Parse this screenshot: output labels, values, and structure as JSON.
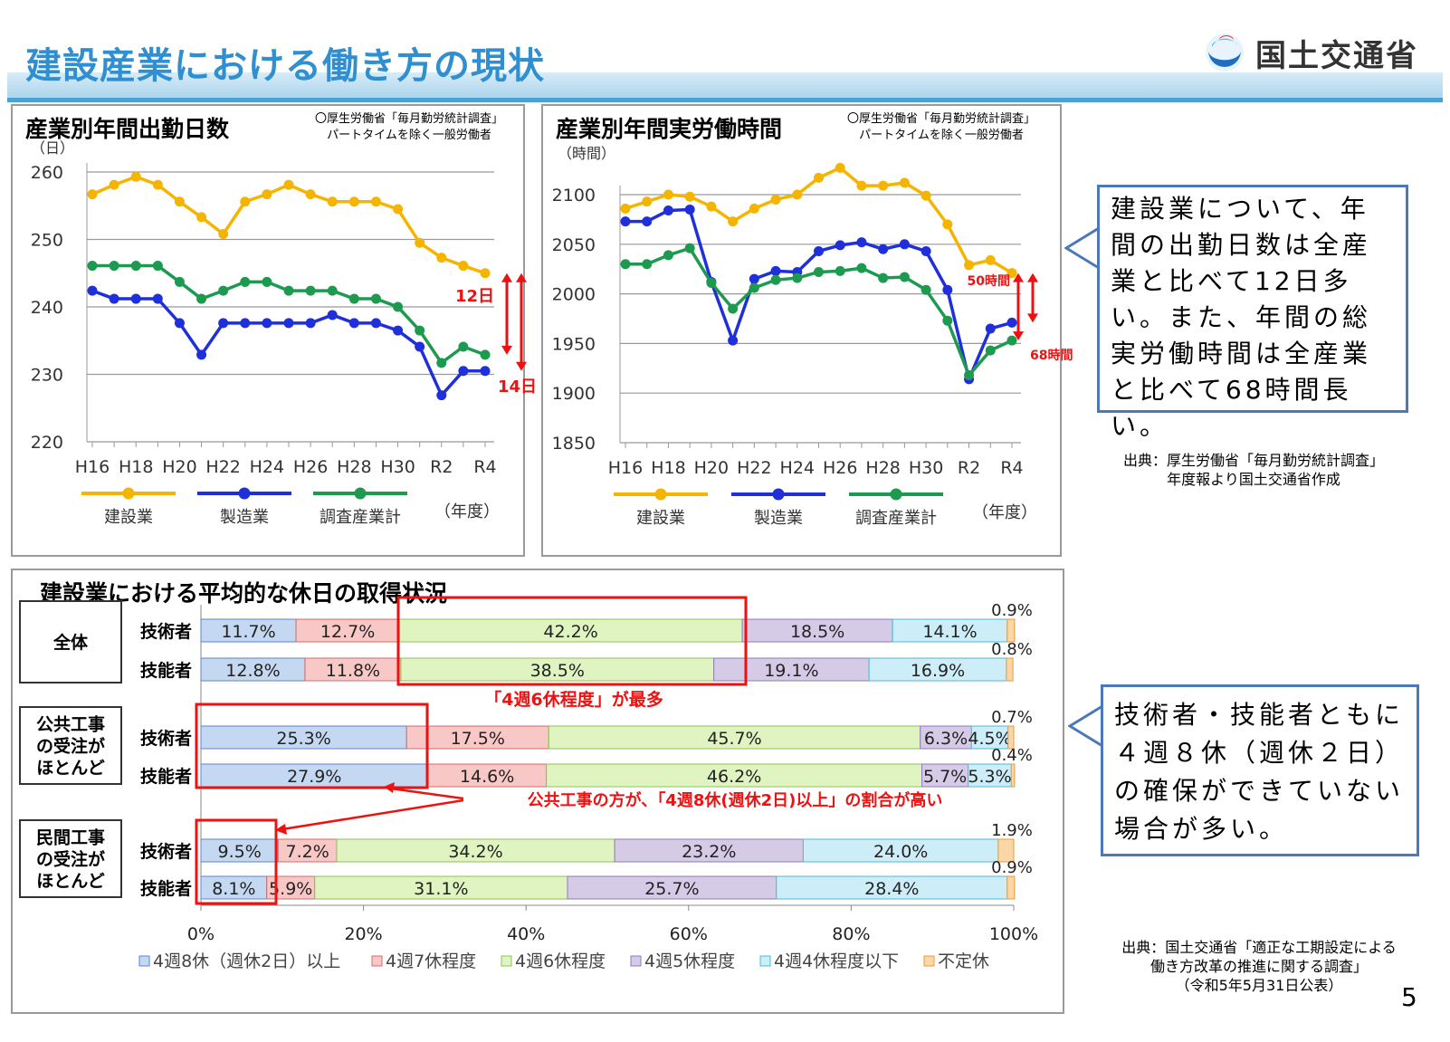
{
  "header": {
    "title": "建設産業における働き方の現状",
    "ministry": "国土交通省"
  },
  "colors": {
    "construction": "#f5b400",
    "manufacturing": "#1f2fd9",
    "all_industry": "#1e9a50",
    "accent_red": "#ee1111",
    "title_blue": "#2f8fd0",
    "bar_8": "#c5d8f1",
    "bar_7": "#f8c8c6",
    "bar_6": "#dff4c0",
    "bar_5": "#d6cbe7",
    "bar_4": "#cdeef8",
    "bar_irregular": "#fbd7a8"
  },
  "days_panel": {
    "note_line1": "〇厚生労働省「毎月勤労統計調査」",
    "note_line2": "パートタイムを除く一般労働者",
    "diff_upper": "12日",
    "diff_lower": "14日"
  },
  "hours_panel": {
    "note_line1": "〇厚生労働省「毎月勤労統計調査」",
    "note_line2": "パートタイムを除く一般労働者",
    "diff_upper": "50時間",
    "diff_lower": "68時間"
  },
  "legend": {
    "construction": "建設業",
    "manufacturing": "製造業",
    "all": "調査産業計",
    "year": "（年度）"
  },
  "callout_top": "建設業について、年間の出勤日数は全産業と比べて12日多い。また、年間の総実労働時間は全産業と比べて68時間長い。",
  "source_top": {
    "line1": "出典：厚生労働省「毎月勤労統計調査」",
    "line2": "年度報より国土交通省作成"
  },
  "holiday_panel": {
    "group_all": "全体",
    "group_public": "公共工事の受注がほとんど",
    "group_private": "民間工事の受注がほとんど",
    "note_6": "「4週6休程度」が最多",
    "note_8": "公共工事の方が、「4週8休(週休2日)以上」の割合が高い"
  },
  "callout_bottom": "技術者・技能者ともに４週８休（週休２日）の確保ができていない場合が多い。",
  "source_bottom": {
    "line1": "出典：国土交通省「適正な工期設定による",
    "line2": "働き方改革の推進に関する調査」",
    "line3": "（令和5年5月31日公表）"
  },
  "page_number": "5",
  "chart_data": [
    {
      "type": "line",
      "title": "産業別年間出勤日数",
      "ylabel": "（日）",
      "ylim": [
        220,
        260
      ],
      "yticks": [
        220,
        230,
        240,
        250,
        260
      ],
      "x": [
        "H16",
        "H17",
        "H18",
        "H19",
        "H20",
        "H21",
        "H22",
        "H23",
        "H24",
        "H25",
        "H26",
        "H27",
        "H28",
        "H29",
        "H30",
        "R1",
        "R2",
        "R3",
        "R4"
      ],
      "xtick_labels": [
        "H16",
        "H18",
        "H20",
        "H22",
        "H24",
        "H26",
        "H28",
        "H30",
        "R2",
        "R4"
      ],
      "series": [
        {
          "name": "建設業",
          "values": [
            256.7,
            258.1,
            259.3,
            258.1,
            255.6,
            253.3,
            250.8,
            255.6,
            256.7,
            258.1,
            256.7,
            255.6,
            255.6,
            255.6,
            254.5,
            249.5,
            247.3,
            246.1,
            245.0
          ]
        },
        {
          "name": "製造業",
          "values": [
            242.4,
            241.2,
            241.2,
            241.2,
            237.6,
            232.9,
            237.6,
            237.6,
            237.6,
            237.6,
            237.6,
            238.8,
            237.6,
            237.6,
            236.5,
            234.1,
            226.9,
            230.5,
            230.5
          ]
        },
        {
          "name": "調査産業計",
          "values": [
            246.1,
            246.1,
            246.1,
            246.1,
            243.7,
            241.2,
            242.4,
            243.7,
            243.7,
            242.4,
            242.4,
            242.4,
            241.2,
            241.2,
            240.0,
            236.5,
            231.7,
            234.1,
            232.9
          ]
        }
      ]
    },
    {
      "type": "line",
      "title": "産業別年間実労働時間",
      "ylabel": "（時間）",
      "ylim": [
        1850,
        2100
      ],
      "yticks": [
        1850,
        1900,
        1950,
        2000,
        2050,
        2100
      ],
      "x": [
        "H16",
        "H17",
        "H18",
        "H19",
        "H20",
        "H21",
        "H22",
        "H23",
        "H24",
        "H25",
        "H26",
        "H27",
        "H28",
        "H29",
        "H30",
        "R1",
        "R2",
        "R3",
        "R4"
      ],
      "xtick_labels": [
        "H16",
        "H18",
        "H20",
        "H22",
        "H24",
        "H26",
        "H28",
        "H30",
        "R2",
        "R4"
      ],
      "series": [
        {
          "name": "建設業",
          "values": [
            2086,
            2093,
            2100,
            2098,
            2088,
            2073,
            2086,
            2095,
            2100,
            2117,
            2127,
            2109,
            2109,
            2112,
            2099,
            2070,
            2029,
            2034,
            2021
          ]
        },
        {
          "name": "製造業",
          "values": [
            2073,
            2073,
            2084,
            2085,
            2012,
            1953,
            2015,
            2023,
            2022,
            2043,
            2049,
            2052,
            2045,
            2050,
            2043,
            2004,
            1914,
            1965,
            1971
          ]
        },
        {
          "name": "調査産業計",
          "values": [
            2030,
            2030,
            2039,
            2046,
            2011,
            1985,
            2006,
            2014,
            2016,
            2022,
            2023,
            2026,
            2016,
            2017,
            2004,
            1973,
            1918,
            1943,
            1953
          ]
        }
      ]
    },
    {
      "type": "bar",
      "title": "建設業における平均的な休日の取得状況",
      "orientation": "horizontal-stacked",
      "xlim": [
        0,
        100
      ],
      "xticks": [
        "0%",
        "20%",
        "40%",
        "60%",
        "80%",
        "100%"
      ],
      "categories": [
        "4週8休（週休2日）以上",
        "4週7休程度",
        "4週6休程度",
        "4週5休程度",
        "4週4休程度以下",
        "不定休"
      ],
      "rows": [
        {
          "group": "全体",
          "label": "技術者",
          "values": [
            11.7,
            12.7,
            42.2,
            18.5,
            14.1,
            0.9
          ]
        },
        {
          "group": "全体",
          "label": "技能者",
          "values": [
            12.8,
            11.8,
            38.5,
            19.1,
            16.9,
            0.8
          ]
        },
        {
          "group": "公共工事の受注がほとんど",
          "label": "技術者",
          "values": [
            25.3,
            17.5,
            45.7,
            6.3,
            4.5,
            0.7
          ]
        },
        {
          "group": "公共工事の受注がほとんど",
          "label": "技能者",
          "values": [
            27.9,
            14.6,
            46.2,
            5.7,
            5.3,
            0.4
          ]
        },
        {
          "group": "民間工事の受注がほとんど",
          "label": "技術者",
          "values": [
            9.5,
            7.2,
            34.2,
            23.2,
            24.0,
            1.9
          ]
        },
        {
          "group": "民間工事の受注がほとんど",
          "label": "技能者",
          "values": [
            8.1,
            5.9,
            31.1,
            25.7,
            28.4,
            0.9
          ]
        }
      ]
    }
  ]
}
